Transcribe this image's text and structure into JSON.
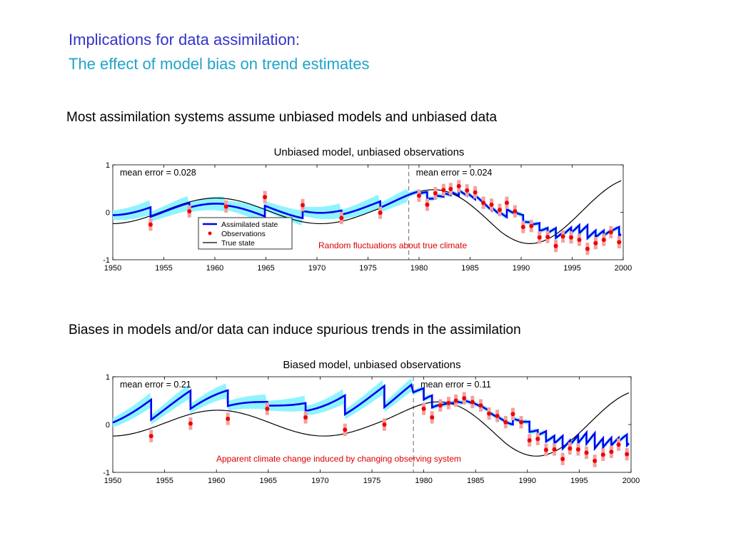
{
  "slide": {
    "title_line1": "Implications for data assimilation:",
    "title_line2": "The effect of model bias on trend estimates",
    "caption1": "Most assimilation systems assume unbiased models and unbiased data",
    "caption2": "Biases in models and/or data can induce spurious trends in the assimilation"
  },
  "colors": {
    "assimilated": "#0000ee",
    "band": "#8ff4ff",
    "observations": "#ee0000",
    "obs_error": "#f4a0a0",
    "true_state": "#000000",
    "annotation": "#dd0000",
    "title1": "#3333cc",
    "title2": "#1fa4c9"
  },
  "chart_data": [
    {
      "type": "line",
      "title": "Unbiased model, unbiased observations",
      "x_ticks": [
        1950,
        1955,
        1960,
        1965,
        1970,
        1975,
        1980,
        1985,
        1990,
        1995,
        2000
      ],
      "y_ticks": [
        1,
        0,
        -1
      ],
      "xlim": [
        1950,
        2000
      ],
      "ylim": [
        -1,
        1
      ],
      "divider_year": 1979,
      "left_label": "mean error = 0.028",
      "right_label": "mean error = 0.024",
      "legend": [
        "Assimilated state",
        "Observations",
        "True state"
      ],
      "annotation": "Random fluctuations about true climate",
      "bias": 0,
      "obs_years": [
        1953.7,
        1957.5,
        1961.1,
        1964.9,
        1968.6,
        1972.4,
        1976.2,
        1980.0,
        1980.8,
        1981.6,
        1982.4,
        1983.1,
        1983.9,
        1984.7,
        1985.5,
        1986.3,
        1987.1,
        1987.9,
        1988.6,
        1989.4,
        1990.2,
        1991.0,
        1991.8,
        1992.6,
        1993.4,
        1994.1,
        1994.9,
        1995.7,
        1996.5,
        1997.3,
        1998.1,
        1998.8,
        1999.6
      ],
      "obs_values": [
        -0.26,
        0.02,
        0.12,
        0.32,
        0.15,
        -0.12,
        -0.01,
        0.35,
        0.16,
        0.4,
        0.47,
        0.49,
        0.55,
        0.46,
        0.42,
        0.2,
        0.16,
        0.05,
        0.2,
        0.02,
        -0.31,
        -0.29,
        -0.53,
        -0.52,
        -0.71,
        -0.51,
        -0.53,
        -0.58,
        -0.77,
        -0.65,
        -0.58,
        -0.42,
        -0.63
      ]
    },
    {
      "type": "line",
      "title": "Biased model, unbiased observations",
      "x_ticks": [
        1950,
        1955,
        1960,
        1965,
        1970,
        1975,
        1980,
        1985,
        1990,
        1995,
        2000
      ],
      "y_ticks": [
        1,
        0,
        -1
      ],
      "xlim": [
        1950,
        2000
      ],
      "ylim": [
        -1,
        1
      ],
      "divider_year": 1979,
      "left_label": "mean error = 0.21",
      "right_label": "mean error = 0.11",
      "legend": [],
      "annotation": "Apparent climate change induced by changing observing system",
      "bias": 0.35,
      "obs_years": [
        1953.7,
        1957.5,
        1961.1,
        1964.9,
        1968.6,
        1972.4,
        1976.2,
        1980.0,
        1980.8,
        1981.6,
        1982.4,
        1983.1,
        1983.9,
        1984.7,
        1985.5,
        1986.3,
        1987.1,
        1987.9,
        1988.6,
        1989.4,
        1990.2,
        1991.0,
        1991.8,
        1992.6,
        1993.4,
        1994.1,
        1994.9,
        1995.7,
        1996.5,
        1997.3,
        1998.1,
        1998.8,
        1999.6
      ],
      "obs_values": [
        -0.24,
        0.02,
        0.12,
        0.33,
        0.15,
        -0.11,
        0.0,
        0.33,
        0.15,
        0.4,
        0.45,
        0.5,
        0.55,
        0.47,
        0.4,
        0.23,
        0.18,
        0.05,
        0.22,
        0.05,
        -0.33,
        -0.3,
        -0.53,
        -0.52,
        -0.72,
        -0.5,
        -0.52,
        -0.59,
        -0.76,
        -0.63,
        -0.57,
        -0.42,
        -0.62
      ]
    }
  ]
}
